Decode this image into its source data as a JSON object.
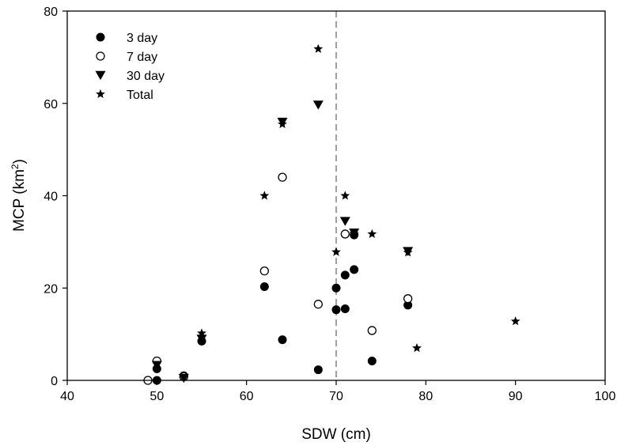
{
  "chart_data": {
    "type": "scatter",
    "xlabel": "SDW (cm)",
    "ylabel": {
      "base": "MCP (km",
      "sup": "2",
      "tail": ")"
    },
    "xlim": [
      40,
      100
    ],
    "ylim": [
      0,
      80
    ],
    "xticks": [
      40,
      50,
      60,
      70,
      80,
      90,
      100
    ],
    "yticks": [
      0,
      20,
      40,
      60,
      80
    ],
    "grid": false,
    "legend_position": "top-left",
    "reference_line": {
      "x": 70,
      "style": "dashed",
      "color": "#808080"
    },
    "series": [
      {
        "name": "3 day",
        "marker": "filled-circle",
        "color": "#000000",
        "points": [
          [
            49,
            0
          ],
          [
            50,
            0
          ],
          [
            50,
            2.5
          ],
          [
            53,
            1
          ],
          [
            55,
            8.5
          ],
          [
            62,
            20.3
          ],
          [
            64,
            8.8
          ],
          [
            68,
            2.3
          ],
          [
            70,
            20
          ],
          [
            70,
            15.3
          ],
          [
            71,
            15.5
          ],
          [
            71,
            22.8
          ],
          [
            72,
            24
          ],
          [
            72,
            31.5
          ],
          [
            74,
            4.2
          ],
          [
            78,
            16.3
          ]
        ]
      },
      {
        "name": "7 day",
        "marker": "open-circle",
        "color": "#000000",
        "points": [
          [
            49,
            0
          ],
          [
            50,
            4.2
          ],
          [
            53,
            0.8
          ],
          [
            62,
            23.7
          ],
          [
            64,
            44
          ],
          [
            68,
            16.5
          ],
          [
            71,
            31.7
          ],
          [
            74,
            10.8
          ],
          [
            78,
            17.7
          ]
        ]
      },
      {
        "name": "30 day",
        "marker": "filled-triangle-down",
        "color": "#000000",
        "points": [
          [
            50,
            3.3
          ],
          [
            53,
            0.5
          ],
          [
            55,
            9
          ],
          [
            64,
            56
          ],
          [
            68,
            59.7
          ],
          [
            71,
            34.5
          ],
          [
            72,
            32
          ],
          [
            78,
            28
          ]
        ]
      },
      {
        "name": "Total",
        "marker": "filled-star",
        "color": "#000000",
        "points": [
          [
            55,
            10.2
          ],
          [
            62,
            40
          ],
          [
            64,
            55.5
          ],
          [
            68,
            71.8
          ],
          [
            70,
            27.8
          ],
          [
            71,
            40
          ],
          [
            72,
            31.8
          ],
          [
            74,
            31.7
          ],
          [
            78,
            27.7
          ],
          [
            79,
            7
          ],
          [
            90,
            12.8
          ]
        ]
      }
    ]
  }
}
